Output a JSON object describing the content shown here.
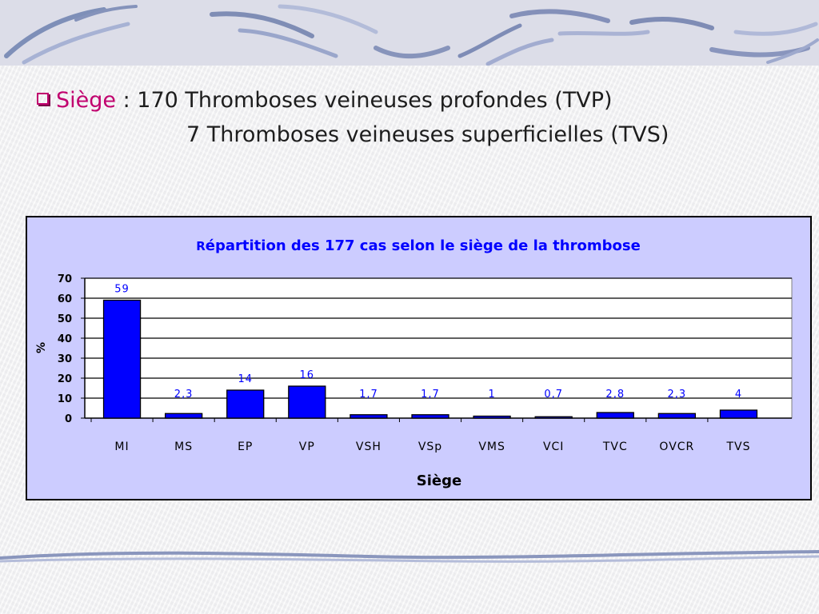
{
  "slide": {
    "bullet_label": "Siège",
    "bullet_separator": " : ",
    "line1_rest": "170 Thromboses veineuses profondes (TVP)",
    "line2": "7 Thromboses veineuses superficielles (TVS)"
  },
  "colors": {
    "accent": "#c1006e",
    "chart_background": "#ccccff",
    "bar_fill": "#0000ff",
    "data_label": "#0000ff",
    "title": "#0000ff"
  },
  "chart_data": {
    "type": "bar",
    "title_lead": "R",
    "title_rest": "épartition des 177 cas selon le siège de la thrombose",
    "xlabel": "Siège",
    "ylabel": "%",
    "categories": [
      "MI",
      "MS",
      "EP",
      "VP",
      "VSH",
      "VSp",
      "VMS",
      "VCI",
      "TVC",
      "OVCR",
      "TVS"
    ],
    "values": [
      59,
      2.3,
      14,
      16,
      1.7,
      1.7,
      1,
      0.7,
      2.8,
      2.3,
      4
    ],
    "data_labels": [
      "59",
      "2,3",
      "14",
      "16",
      "1,7",
      "1,7",
      "1",
      "0,7",
      "2,8",
      "2,3",
      "4"
    ],
    "ylim": [
      0,
      70
    ],
    "yticks": [
      0,
      10,
      20,
      30,
      40,
      50,
      60,
      70
    ],
    "grid": true,
    "legend": "none"
  }
}
